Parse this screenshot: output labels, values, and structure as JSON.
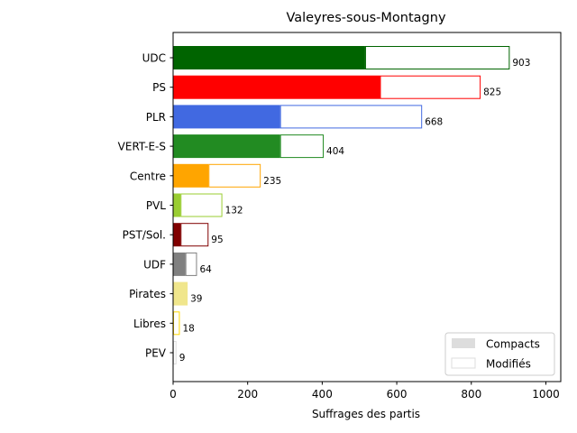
{
  "chart_data": {
    "type": "bar",
    "orientation": "horizontal",
    "stacked": true,
    "title": "Valeyres-sous-Montagny",
    "xlabel": "Suffrages des partis",
    "ylabel": "",
    "xlim": [
      0,
      1040
    ],
    "xticks": [
      "0",
      "200",
      "400",
      "600",
      "800",
      "1000"
    ],
    "xtick_values": [
      0,
      200,
      400,
      600,
      800,
      1000
    ],
    "grid": false,
    "legend_position": "lower-right",
    "legend": [
      {
        "label": "Compacts",
        "style": "filled",
        "color": "#dddddd"
      },
      {
        "label": "Modifiés",
        "style": "outline",
        "color": "#dddddd"
      }
    ],
    "categories": [
      "UDC",
      "PS",
      "PLR",
      "VERT-E-S",
      "Centre",
      "PVL",
      "PST/Sol.",
      "UDF",
      "Pirates",
      "Libres",
      "PEV"
    ],
    "colors": [
      "#006400",
      "#ff0000",
      "#4169e1",
      "#228b22",
      "#ffa500",
      "#9acd32",
      "#800000",
      "#808080",
      "#f0e68c",
      "#ffd700",
      "#dddddd"
    ],
    "series": [
      {
        "name": "Compacts",
        "values": [
          515,
          555,
          287,
          287,
          95,
          20,
          20,
          33,
          39,
          0,
          0
        ]
      },
      {
        "name": "Modifiés",
        "values": [
          388,
          270,
          381,
          117,
          140,
          112,
          75,
          31,
          0,
          18,
          9
        ]
      }
    ],
    "totals": [
      "903",
      "825",
      "668",
      "404",
      "235",
      "132",
      "95",
      "64",
      "39",
      "18",
      "9"
    ]
  }
}
